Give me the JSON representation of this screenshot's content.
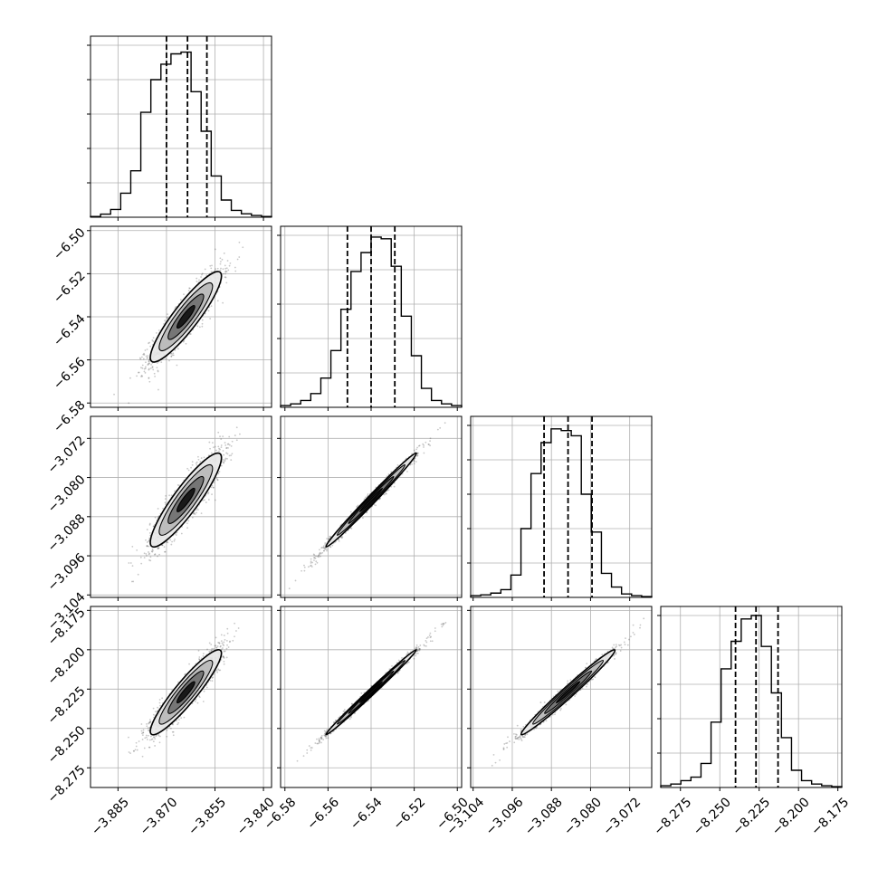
{
  "chart_data": {
    "type": "corner",
    "parameters": [
      {
        "range": [
          -3.8935,
          -3.8375
        ],
        "ticks": [
          -3.885,
          -3.87,
          -3.855,
          -3.84
        ],
        "tick_labels": [
          "−3.885",
          "−3.870",
          "−3.855",
          "−3.840"
        ],
        "quantiles": [
          -3.87,
          -3.8635,
          -3.8575
        ],
        "hist": [
          0.004,
          0.018,
          0.045,
          0.14,
          0.27,
          0.61,
          0.8,
          0.89,
          0.95,
          0.96,
          0.73,
          0.5,
          0.24,
          0.1,
          0.04,
          0.02,
          0.01,
          0.004
        ],
        "center": -3.864,
        "std": 0.0055
      },
      {
        "range": [
          -6.582,
          -6.498
        ],
        "ticks": [
          -6.58,
          -6.56,
          -6.54,
          -6.52,
          -6.5
        ],
        "tick_labels": [
          "−6.58",
          "−6.56",
          "−6.54",
          "−6.52",
          "−6.50"
        ],
        "quantiles": [
          -6.551,
          -6.54,
          -6.529
        ],
        "hist": [
          0.01,
          0.02,
          0.04,
          0.08,
          0.17,
          0.33,
          0.57,
          0.79,
          0.9,
          0.99,
          0.98,
          0.82,
          0.53,
          0.3,
          0.11,
          0.04,
          0.02,
          0.01
        ],
        "center": -6.54,
        "std": 0.0105
      },
      {
        "range": [
          -3.1045,
          -3.0675
        ],
        "ticks": [
          -3.104,
          -3.096,
          -3.088,
          -3.08,
          -3.072
        ],
        "tick_labels": [
          "−3.104",
          "−3.096",
          "−3.088",
          "−3.080",
          "−3.072"
        ],
        "quantiles": [
          -3.0895,
          -3.0846,
          -3.0797
        ],
        "hist": [
          0.01,
          0.015,
          0.025,
          0.045,
          0.13,
          0.4,
          0.72,
          0.9,
          0.98,
          0.97,
          0.94,
          0.6,
          0.38,
          0.14,
          0.06,
          0.02,
          0.01,
          0.005
        ],
        "center": -3.0846,
        "std": 0.0048
      },
      {
        "range": [
          -8.2875,
          -8.1725
        ],
        "ticks": [
          -8.275,
          -8.25,
          -8.225,
          -8.2,
          -8.175
        ],
        "tick_labels": [
          "−8.275",
          "−8.250",
          "−8.225",
          "−8.200",
          "−8.175"
        ],
        "quantiles": [
          -8.24,
          -8.227,
          -8.213
        ],
        "hist": [
          0.01,
          0.02,
          0.04,
          0.06,
          0.14,
          0.38,
          0.69,
          0.85,
          0.98,
          1.0,
          0.82,
          0.55,
          0.29,
          0.1,
          0.04,
          0.02,
          0.01,
          0.005
        ],
        "center": -8.227,
        "std": 0.0135
      }
    ],
    "hist_yticks": [
      0.2,
      0.4,
      0.6,
      0.8,
      1.0
    ],
    "correlations": {
      "1-0": 0.9,
      "2-0": 0.9,
      "2-1": 0.992,
      "3-0": 0.92,
      "3-1": 0.995,
      "3-2": 0.985
    },
    "contour_levels": [
      0.5,
      1.0,
      1.5,
      2.0
    ],
    "colors": {
      "points": "#555555",
      "contour_line": "#000000",
      "fill_outer": "#e8e8e8",
      "fill_mid": "#b8b8b8",
      "fill_inner": "#707070",
      "fill_core": "#111111",
      "grid": "#b0b0b0"
    }
  }
}
